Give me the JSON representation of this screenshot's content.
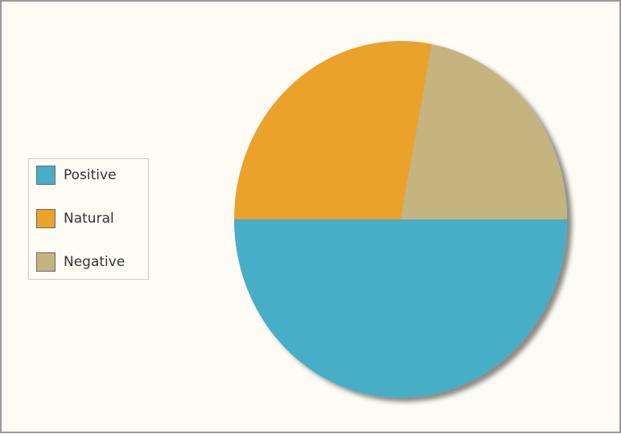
{
  "chart_data": {
    "type": "pie",
    "categories": [
      "Positive",
      "Natural",
      "Negative"
    ],
    "values": [
      50,
      28,
      22
    ],
    "colors": [
      "#47aec7",
      "#eaa22a",
      "#c5b480"
    ],
    "legend_position": "left"
  }
}
